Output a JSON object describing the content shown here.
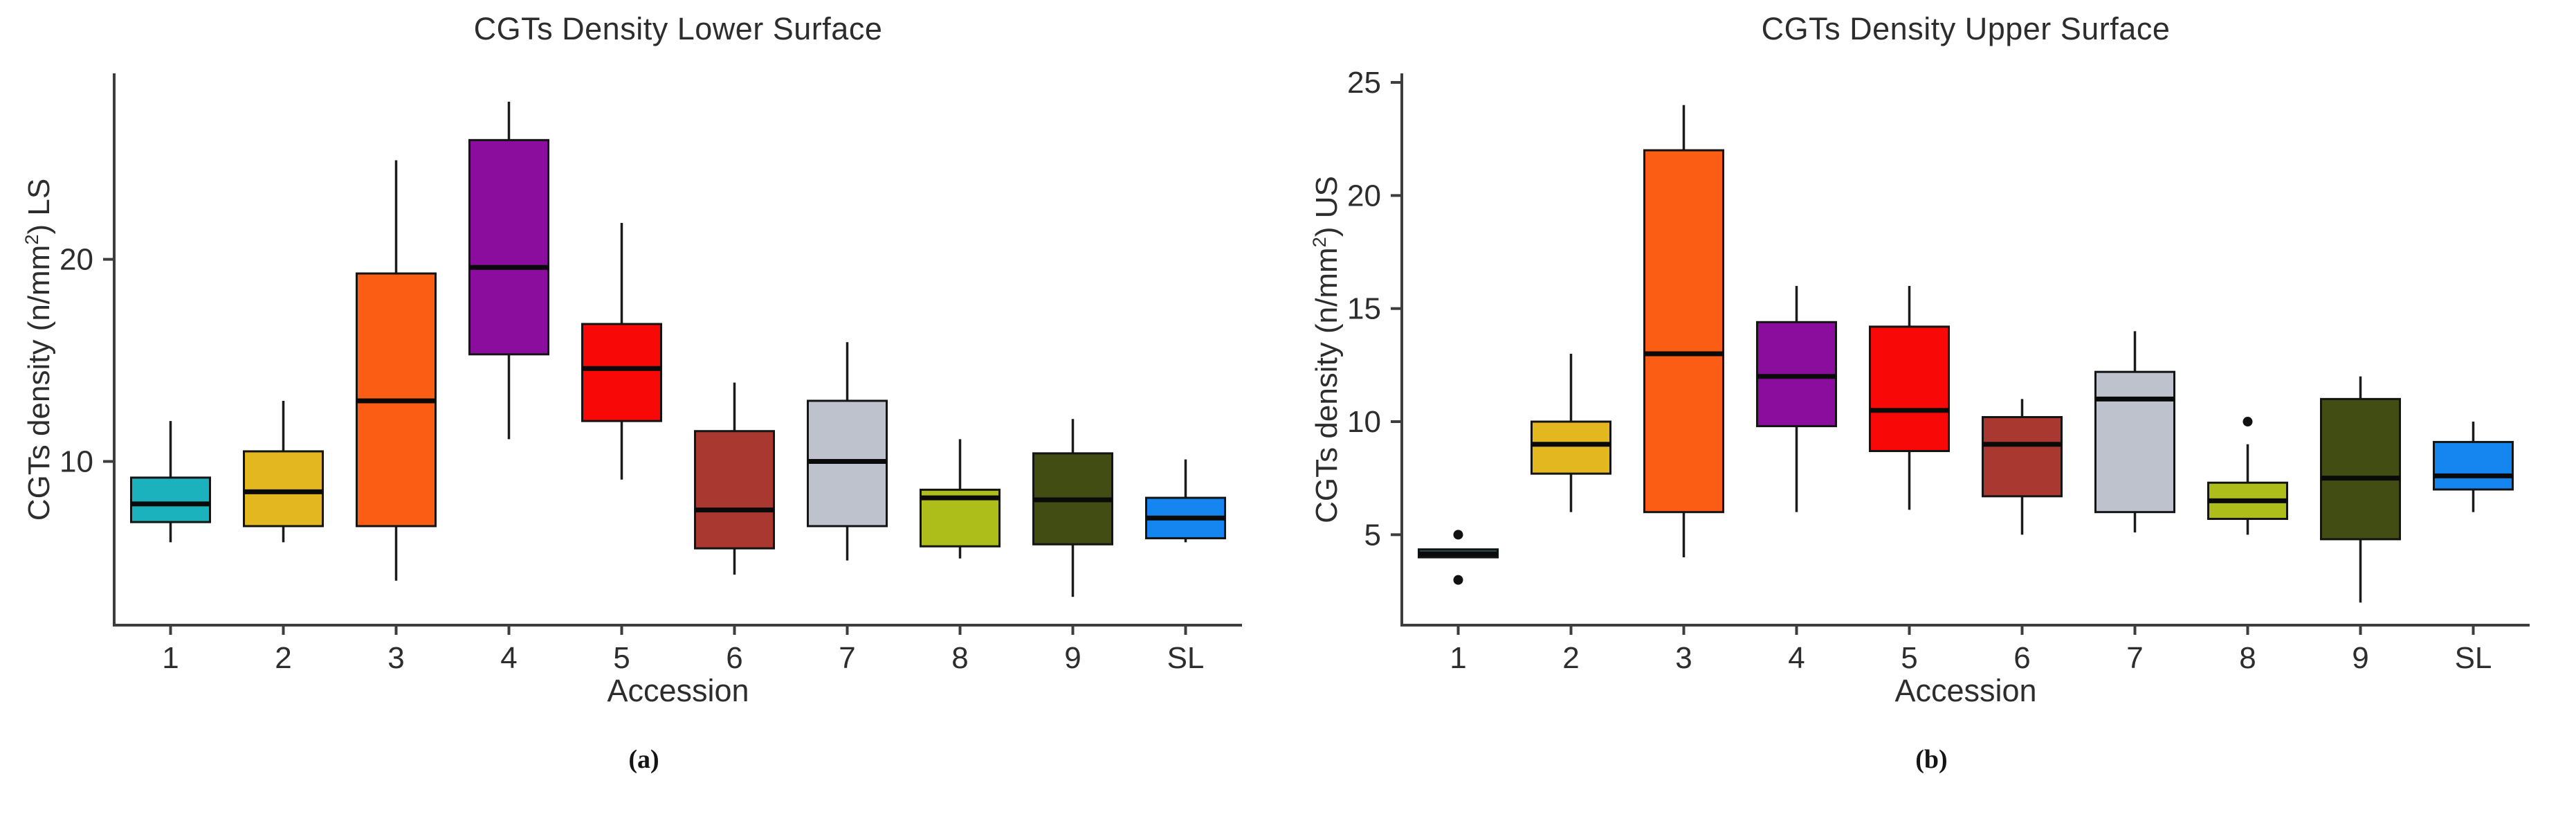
{
  "style": {
    "background": "#ffffff",
    "axis_color": "#3d3d3d",
    "text_color": "#2d2d2d",
    "box_border_color": "#141414",
    "median_color": "#0a0a0a",
    "outlier_color": "#111111"
  },
  "chart_data": [
    {
      "type": "box",
      "panel": "a",
      "title": "CGTs Density Lower Surface",
      "ylabel_pre": "CGTs density (n/mm",
      "ylabel_sup": "2",
      "ylabel_post": ") LS",
      "ylabel_full": "CGTs density (n/mm2) LS",
      "xlabel": "Accession",
      "caption": "(a)",
      "ylim": [
        1.9,
        29.2
      ],
      "yticks": [
        10,
        20
      ],
      "grid": false,
      "legend": "none",
      "categories": [
        "1",
        "2",
        "3",
        "4",
        "5",
        "6",
        "7",
        "8",
        "9",
        "SL"
      ],
      "boxes": [
        {
          "label": "1",
          "color": "#1cb2bd",
          "min": 6.0,
          "q1": 7.0,
          "med": 7.9,
          "q3": 9.2,
          "max": 12.0,
          "outliers": []
        },
        {
          "label": "2",
          "color": "#e2b71f",
          "min": 6.0,
          "q1": 6.8,
          "med": 8.5,
          "q3": 10.5,
          "max": 13.0,
          "outliers": []
        },
        {
          "label": "3",
          "color": "#fb5d15",
          "min": 4.1,
          "q1": 6.8,
          "med": 13.0,
          "q3": 19.3,
          "max": 24.9,
          "outliers": []
        },
        {
          "label": "4",
          "color": "#8a0d9e",
          "min": 11.1,
          "q1": 15.3,
          "med": 19.6,
          "q3": 25.9,
          "max": 27.8,
          "outliers": []
        },
        {
          "label": "5",
          "color": "#f90808",
          "min": 9.1,
          "q1": 12.0,
          "med": 14.6,
          "q3": 16.8,
          "max": 21.8,
          "outliers": []
        },
        {
          "label": "6",
          "color": "#a93830",
          "min": 4.4,
          "q1": 5.7,
          "med": 7.6,
          "q3": 11.5,
          "max": 13.9,
          "outliers": []
        },
        {
          "label": "7",
          "color": "#bec2cd",
          "min": 5.1,
          "q1": 6.8,
          "med": 10.0,
          "q3": 13.0,
          "max": 15.9,
          "outliers": []
        },
        {
          "label": "8",
          "color": "#adbd1a",
          "min": 5.2,
          "q1": 5.8,
          "med": 8.2,
          "q3": 8.6,
          "max": 11.1,
          "outliers": []
        },
        {
          "label": "9",
          "color": "#414d12",
          "min": 3.3,
          "q1": 5.9,
          "med": 8.1,
          "q3": 10.4,
          "max": 12.1,
          "outliers": []
        },
        {
          "label": "SL",
          "color": "#1586f0",
          "min": 6.0,
          "q1": 6.2,
          "med": 7.2,
          "q3": 8.2,
          "max": 10.1,
          "outliers": []
        }
      ]
    },
    {
      "type": "box",
      "panel": "b",
      "title": "CGTs Density Upper Surface",
      "ylabel_pre": "CGTs density (n/mm",
      "ylabel_sup": "2",
      "ylabel_post": ") US",
      "ylabel_full": "CGTs density (n/mm2) US",
      "xlabel": "Accession",
      "caption": "(b)",
      "ylim": [
        1.0,
        25.4
      ],
      "yticks": [
        5,
        10,
        15,
        20,
        25
      ],
      "grid": false,
      "legend": "none",
      "categories": [
        "1",
        "2",
        "3",
        "4",
        "5",
        "6",
        "7",
        "8",
        "9",
        "SL"
      ],
      "boxes": [
        {
          "label": "1",
          "color": "#30595f",
          "min": 4.0,
          "q1": 4.0,
          "med": 4.15,
          "q3": 4.35,
          "max": 4.35,
          "outliers": [
            5.0,
            3.0
          ]
        },
        {
          "label": "2",
          "color": "#e2b71f",
          "min": 6.0,
          "q1": 7.7,
          "med": 9.0,
          "q3": 10.0,
          "max": 13.0,
          "outliers": []
        },
        {
          "label": "3",
          "color": "#fb5d15",
          "min": 4.0,
          "q1": 6.0,
          "med": 13.0,
          "q3": 22.0,
          "max": 24.0,
          "outliers": []
        },
        {
          "label": "4",
          "color": "#8a0d9e",
          "min": 6.0,
          "q1": 9.8,
          "med": 12.0,
          "q3": 14.4,
          "max": 16.0,
          "outliers": []
        },
        {
          "label": "5",
          "color": "#f90808",
          "min": 6.1,
          "q1": 8.7,
          "med": 10.5,
          "q3": 14.2,
          "max": 16.0,
          "outliers": []
        },
        {
          "label": "6",
          "color": "#a93830",
          "min": 5.0,
          "q1": 6.7,
          "med": 9.0,
          "q3": 10.2,
          "max": 11.0,
          "outliers": []
        },
        {
          "label": "7",
          "color": "#bec2cd",
          "min": 5.1,
          "q1": 6.0,
          "med": 11.0,
          "q3": 12.2,
          "max": 14.0,
          "outliers": []
        },
        {
          "label": "8",
          "color": "#adbd1a",
          "min": 5.0,
          "q1": 5.7,
          "med": 6.5,
          "q3": 7.3,
          "max": 9.0,
          "outliers": [
            10.0
          ]
        },
        {
          "label": "9",
          "color": "#414d12",
          "min": 2.0,
          "q1": 4.8,
          "med": 7.5,
          "q3": 11.0,
          "max": 12.0,
          "outliers": []
        },
        {
          "label": "SL",
          "color": "#1586f0",
          "min": 6.0,
          "q1": 7.0,
          "med": 7.6,
          "q3": 9.1,
          "max": 10.0,
          "outliers": []
        }
      ]
    }
  ]
}
